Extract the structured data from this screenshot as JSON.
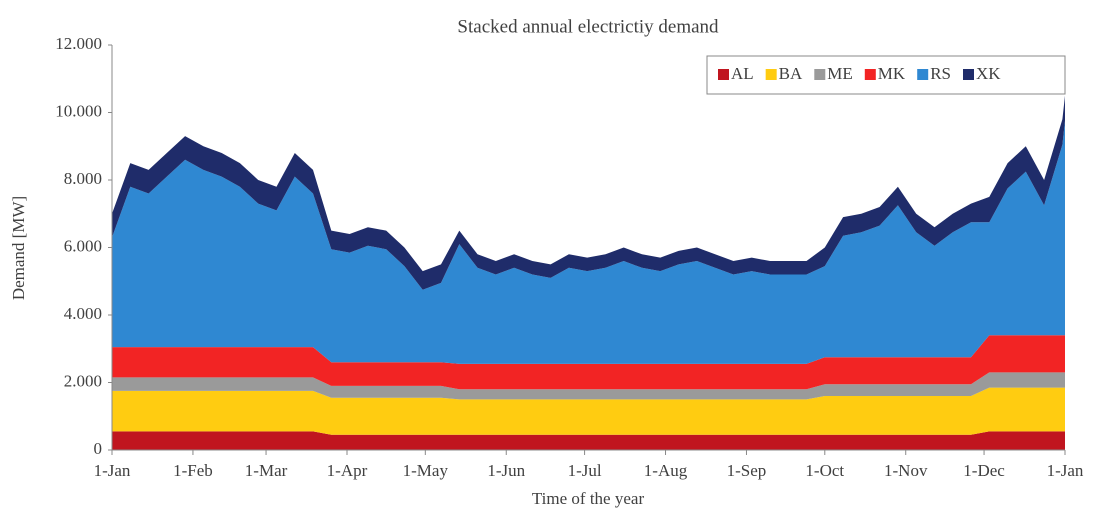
{
  "chart_data": {
    "type": "stacked-area",
    "title": "Stacked annual electrictiy demand",
    "x_label": "Time of the year",
    "y_label": "Demand [MW]",
    "x": [
      0,
      7,
      14,
      21,
      28,
      35,
      42,
      49,
      56,
      63,
      70,
      77,
      84,
      91,
      98,
      105,
      112,
      119,
      126,
      133,
      140,
      147,
      154,
      161,
      168,
      175,
      182,
      189,
      196,
      203,
      210,
      217,
      224,
      231,
      238,
      245,
      252,
      259,
      266,
      273,
      280,
      287,
      294,
      301,
      308,
      315,
      322,
      329,
      336,
      343,
      350,
      357,
      364,
      365
    ],
    "xlim": [
      0,
      365
    ],
    "xticks": [
      {
        "value": 0,
        "label": "1-Jan"
      },
      {
        "value": 31,
        "label": "1-Feb"
      },
      {
        "value": 59,
        "label": "1-Mar"
      },
      {
        "value": 90,
        "label": "1-Apr"
      },
      {
        "value": 120,
        "label": "1-May"
      },
      {
        "value": 151,
        "label": "1-Jun"
      },
      {
        "value": 181,
        "label": "1-Jul"
      },
      {
        "value": 212,
        "label": "1-Aug"
      },
      {
        "value": 243,
        "label": "1-Sep"
      },
      {
        "value": 273,
        "label": "1-Oct"
      },
      {
        "value": 304,
        "label": "1-Nov"
      },
      {
        "value": 334,
        "label": "1-Dec"
      },
      {
        "value": 365,
        "label": "1-Jan"
      }
    ],
    "ylim": [
      0,
      12000
    ],
    "yticks": [
      0,
      {
        "value": 2000,
        "label": "2.000"
      },
      {
        "value": 4000,
        "label": "4.000"
      },
      {
        "value": 6000,
        "label": "6.000"
      },
      {
        "value": 8000,
        "label": "8.000"
      },
      {
        "value": 10000,
        "label": "10.000"
      },
      {
        "value": 12000,
        "label": "12.000"
      }
    ],
    "legend": "top-right",
    "series": [
      {
        "name": "AL",
        "color": "#c0151f",
        "values": [
          550,
          550,
          550,
          550,
          550,
          550,
          550,
          550,
          550,
          550,
          550,
          550,
          450,
          450,
          450,
          450,
          450,
          450,
          450,
          450,
          450,
          450,
          450,
          450,
          450,
          450,
          450,
          450,
          450,
          450,
          450,
          450,
          450,
          450,
          450,
          450,
          450,
          450,
          450,
          450,
          450,
          450,
          450,
          450,
          450,
          450,
          450,
          450,
          550,
          550,
          550,
          550,
          550,
          550
        ]
      },
      {
        "name": "BA",
        "color": "#ffcc11",
        "values": [
          1200,
          1200,
          1200,
          1200,
          1200,
          1200,
          1200,
          1200,
          1200,
          1200,
          1200,
          1200,
          1100,
          1100,
          1100,
          1100,
          1100,
          1100,
          1100,
          1050,
          1050,
          1050,
          1050,
          1050,
          1050,
          1050,
          1050,
          1050,
          1050,
          1050,
          1050,
          1050,
          1050,
          1050,
          1050,
          1050,
          1050,
          1050,
          1050,
          1150,
          1150,
          1150,
          1150,
          1150,
          1150,
          1150,
          1150,
          1150,
          1300,
          1300,
          1300,
          1300,
          1300,
          1300
        ]
      },
      {
        "name": "ME",
        "color": "#9a9a9a",
        "values": [
          400,
          400,
          400,
          400,
          400,
          400,
          400,
          400,
          400,
          400,
          400,
          400,
          350,
          350,
          350,
          350,
          350,
          350,
          350,
          300,
          300,
          300,
          300,
          300,
          300,
          300,
          300,
          300,
          300,
          300,
          300,
          300,
          300,
          300,
          300,
          300,
          300,
          300,
          300,
          350,
          350,
          350,
          350,
          350,
          350,
          350,
          350,
          350,
          450,
          450,
          450,
          450,
          450,
          450
        ]
      },
      {
        "name": "MK",
        "color": "#f22424",
        "values": [
          900,
          900,
          900,
          900,
          900,
          900,
          900,
          900,
          900,
          900,
          900,
          900,
          700,
          700,
          700,
          700,
          700,
          700,
          700,
          750,
          750,
          750,
          750,
          750,
          750,
          750,
          750,
          750,
          750,
          750,
          750,
          750,
          750,
          750,
          750,
          750,
          750,
          750,
          750,
          800,
          800,
          800,
          800,
          800,
          800,
          800,
          800,
          800,
          1100,
          1100,
          1100,
          1100,
          1100,
          1100
        ]
      },
      {
        "name": "RS",
        "color": "#2f88d2",
        "values": [
          3250,
          4750,
          4550,
          5050,
          5550,
          5250,
          5050,
          4750,
          4250,
          4050,
          5050,
          4550,
          3350,
          3250,
          3450,
          3350,
          2850,
          2150,
          2350,
          3550,
          2850,
          2650,
          2850,
          2650,
          2550,
          2850,
          2750,
          2850,
          3050,
          2850,
          2750,
          2950,
          3050,
          2850,
          2650,
          2750,
          2650,
          2650,
          2650,
          2700,
          3600,
          3700,
          3900,
          4500,
          3700,
          3300,
          3700,
          4000,
          3350,
          4350,
          4850,
          3850,
          5650,
          6350
        ]
      },
      {
        "name": "XK",
        "color": "#1f2c6a",
        "values": [
          700,
          700,
          700,
          700,
          700,
          700,
          700,
          700,
          700,
          700,
          700,
          700,
          550,
          550,
          550,
          550,
          550,
          550,
          550,
          400,
          400,
          400,
          400,
          400,
          400,
          400,
          400,
          400,
          400,
          400,
          400,
          400,
          400,
          400,
          400,
          400,
          400,
          400,
          400,
          550,
          550,
          550,
          550,
          550,
          550,
          550,
          550,
          550,
          750,
          750,
          750,
          750,
          750,
          750
        ]
      }
    ]
  }
}
